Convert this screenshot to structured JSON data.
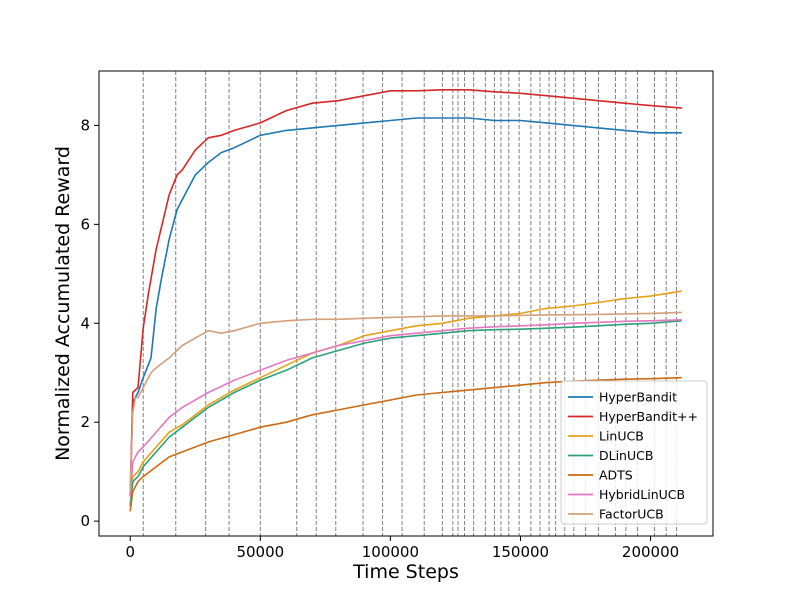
{
  "chart_data": {
    "type": "line",
    "title": "",
    "xlabel": "Time Steps",
    "ylabel": "Normalized Accumulated Reward",
    "xlim": [
      -12000,
      224000
    ],
    "ylim": [
      -0.3,
      9.1
    ],
    "xticks": [
      0,
      50000,
      100000,
      150000,
      200000
    ],
    "xtick_labels": [
      "0",
      "50000",
      "100000",
      "150000",
      "200000"
    ],
    "yticks": [
      0,
      2,
      4,
      6,
      8
    ],
    "ytick_labels": [
      "0",
      "2",
      "4",
      "6",
      "8"
    ],
    "grid": false,
    "legend_position": "lower-right",
    "change_points": [
      5000,
      17500,
      29000,
      38000,
      50000,
      64000,
      71500,
      79000,
      89500,
      97000,
      104500,
      113000,
      120000,
      124000,
      126000,
      128500,
      132000,
      136500,
      140000,
      142500,
      145500,
      149500,
      154000,
      157500,
      161000,
      163500,
      167000,
      170500,
      175000,
      180000,
      186500,
      190500,
      195000,
      201500,
      206000,
      210000
    ],
    "series": [
      {
        "name": "HyperBandit",
        "color": "#1f77b4",
        "x": [
          0,
          1000,
          3000,
          5000,
          8000,
          10000,
          12000,
          15000,
          18000,
          20000,
          25000,
          30000,
          35000,
          40000,
          50000,
          60000,
          70000,
          80000,
          90000,
          100000,
          110000,
          120000,
          130000,
          140000,
          150000,
          160000,
          170000,
          180000,
          190000,
          200000,
          212000
        ],
        "y": [
          0.5,
          2.4,
          2.6,
          2.9,
          3.3,
          4.3,
          4.9,
          5.7,
          6.3,
          6.5,
          7.0,
          7.25,
          7.45,
          7.55,
          7.8,
          7.9,
          7.95,
          8.0,
          8.05,
          8.1,
          8.15,
          8.15,
          8.15,
          8.1,
          8.1,
          8.05,
          8.0,
          7.95,
          7.9,
          7.85,
          7.85
        ]
      },
      {
        "name": "HyperBandit++",
        "color": "#d62728",
        "x": [
          0,
          1000,
          3000,
          5000,
          7000,
          10000,
          15000,
          18000,
          20000,
          25000,
          30000,
          35000,
          40000,
          50000,
          60000,
          70000,
          80000,
          90000,
          100000,
          110000,
          120000,
          130000,
          140000,
          150000,
          160000,
          170000,
          180000,
          190000,
          200000,
          212000
        ],
        "y": [
          0.5,
          2.6,
          2.7,
          3.9,
          4.6,
          5.5,
          6.6,
          7.0,
          7.1,
          7.5,
          7.75,
          7.8,
          7.9,
          8.05,
          8.3,
          8.45,
          8.5,
          8.6,
          8.7,
          8.7,
          8.72,
          8.72,
          8.68,
          8.65,
          8.6,
          8.55,
          8.5,
          8.45,
          8.4,
          8.35
        ]
      },
      {
        "name": "LinUCB",
        "color": "#e6a117",
        "x": [
          0,
          1000,
          3000,
          5000,
          10000,
          15000,
          20000,
          30000,
          40000,
          50000,
          60000,
          70000,
          80000,
          90000,
          100000,
          110000,
          120000,
          130000,
          140000,
          150000,
          160000,
          170000,
          180000,
          190000,
          200000,
          212000
        ],
        "y": [
          0.3,
          0.9,
          1.0,
          1.2,
          1.5,
          1.8,
          1.95,
          2.35,
          2.65,
          2.9,
          3.15,
          3.4,
          3.55,
          3.75,
          3.85,
          3.95,
          4.0,
          4.1,
          4.15,
          4.2,
          4.3,
          4.35,
          4.42,
          4.5,
          4.55,
          4.65
        ]
      },
      {
        "name": "DLinUCB",
        "color": "#2ca07a",
        "x": [
          0,
          1000,
          3000,
          5000,
          10000,
          15000,
          20000,
          30000,
          40000,
          50000,
          60000,
          70000,
          80000,
          90000,
          100000,
          110000,
          120000,
          130000,
          140000,
          150000,
          160000,
          170000,
          180000,
          190000,
          200000,
          212000
        ],
        "y": [
          0.3,
          0.8,
          0.9,
          1.1,
          1.4,
          1.7,
          1.9,
          2.3,
          2.6,
          2.85,
          3.05,
          3.3,
          3.45,
          3.6,
          3.7,
          3.75,
          3.8,
          3.85,
          3.87,
          3.88,
          3.9,
          3.92,
          3.95,
          3.98,
          4.0,
          4.05
        ]
      },
      {
        "name": "ADTS",
        "color": "#cc6a14",
        "x": [
          0,
          1000,
          3000,
          5000,
          10000,
          15000,
          20000,
          30000,
          40000,
          50000,
          60000,
          70000,
          80000,
          90000,
          100000,
          110000,
          120000,
          130000,
          140000,
          150000,
          160000,
          170000,
          180000,
          190000,
          200000,
          212000
        ],
        "y": [
          0.2,
          0.6,
          0.8,
          0.9,
          1.1,
          1.3,
          1.4,
          1.6,
          1.75,
          1.9,
          2.0,
          2.15,
          2.25,
          2.35,
          2.45,
          2.55,
          2.6,
          2.65,
          2.7,
          2.75,
          2.8,
          2.83,
          2.85,
          2.87,
          2.88,
          2.9
        ]
      },
      {
        "name": "HybridLinUCB",
        "color": "#e377c2",
        "x": [
          0,
          1000,
          3000,
          5000,
          10000,
          15000,
          20000,
          30000,
          40000,
          50000,
          60000,
          70000,
          80000,
          90000,
          100000,
          110000,
          120000,
          130000,
          140000,
          150000,
          160000,
          170000,
          180000,
          190000,
          200000,
          212000
        ],
        "y": [
          0.5,
          1.2,
          1.4,
          1.5,
          1.8,
          2.1,
          2.3,
          2.6,
          2.85,
          3.05,
          3.25,
          3.4,
          3.55,
          3.65,
          3.75,
          3.8,
          3.85,
          3.9,
          3.93,
          3.95,
          3.97,
          4.0,
          4.02,
          4.04,
          4.05,
          4.07
        ]
      },
      {
        "name": "FactorUCB",
        "color": "#d2a07a",
        "x": [
          0,
          1000,
          2000,
          3000,
          5000,
          8000,
          10000,
          15000,
          20000,
          25000,
          30000,
          35000,
          40000,
          50000,
          60000,
          70000,
          80000,
          90000,
          100000,
          120000,
          140000,
          160000,
          180000,
          200000,
          212000
        ],
        "y": [
          0.6,
          2.2,
          2.5,
          2.5,
          2.7,
          3.0,
          3.1,
          3.3,
          3.55,
          3.7,
          3.85,
          3.8,
          3.85,
          4.0,
          4.05,
          4.08,
          4.08,
          4.1,
          4.12,
          4.15,
          4.15,
          4.17,
          4.18,
          4.2,
          4.22
        ]
      }
    ]
  }
}
